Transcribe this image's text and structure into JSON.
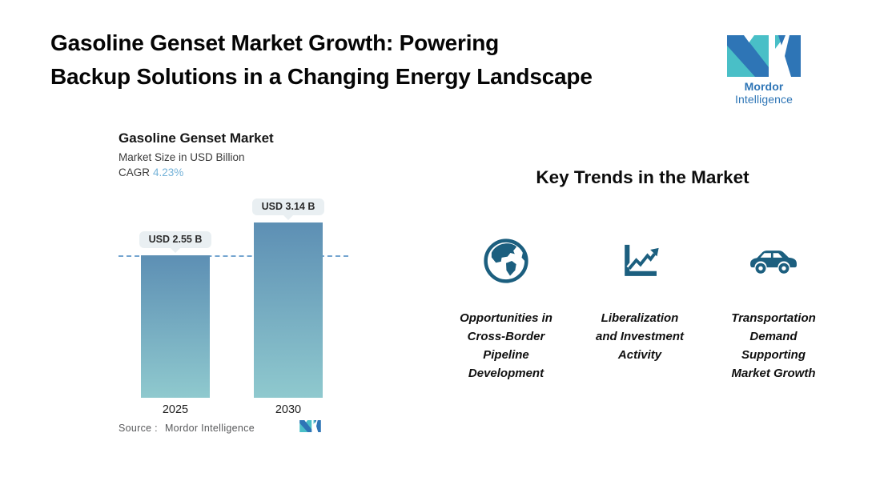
{
  "header": {
    "title_line1": "Gasoline Genset Market Growth: Powering",
    "title_line2": "Backup Solutions in a Changing Energy Landscape"
  },
  "brand": {
    "wordmark_bold": "Mordor",
    "wordmark_rest": " Intelligence",
    "teal": "#49BFC7",
    "blue": "#2E75B6"
  },
  "chart_data": {
    "type": "bar",
    "title": "Gasoline Genset Market",
    "subtitle": "Market Size in USD Billion",
    "cagr_label": "CAGR",
    "cagr_value": "4.23%",
    "categories": [
      "2025",
      "2030"
    ],
    "values": [
      2.55,
      3.14
    ],
    "value_labels": [
      "USD 2.55 B",
      "USD 3.14 B"
    ],
    "unit": "USD Billion",
    "ylim": [
      0,
      3.14
    ],
    "grid": false,
    "legend": "none",
    "bar_gradient_top": "#5D8FB4",
    "bar_gradient_bottom": "#8FC9CE",
    "reference_line": {
      "at_value": 2.55,
      "style": "dashed",
      "color": "#74A5D0"
    },
    "source_label": "Source :",
    "source_value": "Mordor Intelligence"
  },
  "trends": {
    "heading": "Key Trends in the Market",
    "icon_color": "#1C5F7F",
    "items": [
      {
        "icon": "globe-icon",
        "label": "Opportunities in\nCross-Border\nPipeline\nDevelopment"
      },
      {
        "icon": "line-chart-icon",
        "label": "Liberalization\nand Investment\nActivity"
      },
      {
        "icon": "car-icon",
        "label": "Transportation\nDemand\nSupporting\nMarket Growth"
      }
    ]
  }
}
